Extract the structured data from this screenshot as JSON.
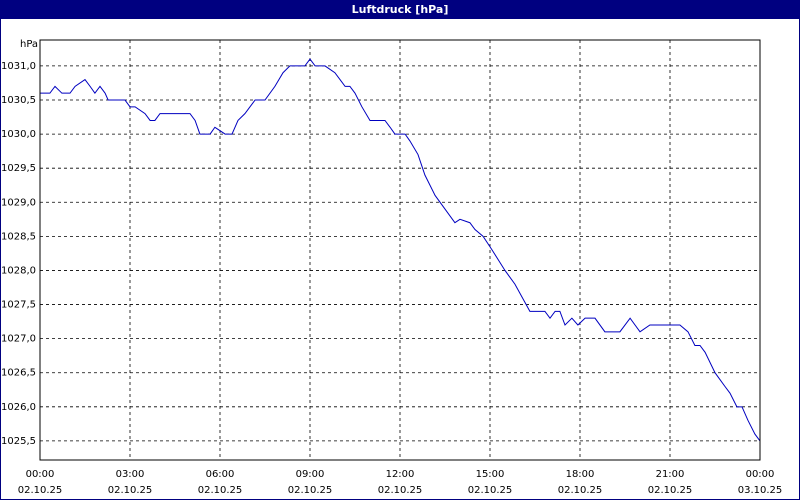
{
  "chart_data": {
    "type": "line",
    "title": "Luftdruck [hPa]",
    "y_label": "hPa",
    "x": [
      0,
      0.33,
      0.5,
      0.73,
      1.0,
      1.17,
      1.5,
      1.67,
      1.83,
      2.0,
      2.17,
      2.27,
      2.83,
      3.0,
      3.17,
      3.5,
      3.67,
      3.83,
      4.0,
      5.0,
      5.17,
      5.33,
      5.67,
      5.83,
      6.17,
      6.4,
      6.6,
      6.83,
      7.0,
      7.17,
      7.5,
      7.83,
      8.1,
      8.33,
      8.83,
      9.0,
      9.17,
      9.5,
      9.83,
      10.0,
      10.17,
      10.33,
      10.5,
      10.73,
      11.0,
      11.5,
      11.67,
      11.83,
      12.17,
      12.33,
      12.6,
      12.83,
      13.17,
      13.5,
      13.83,
      14.0,
      14.33,
      14.5,
      14.77,
      15.07,
      15.5,
      15.83,
      16.33,
      16.83,
      17.0,
      17.17,
      17.33,
      17.5,
      17.73,
      17.93,
      18.17,
      18.5,
      18.83,
      19.33,
      19.67,
      20.0,
      20.33,
      21.33,
      21.6,
      21.83,
      22.0,
      22.17,
      22.5,
      22.83,
      23.0,
      23.23,
      23.4,
      23.6,
      23.83,
      24
    ],
    "series": [
      {
        "name": "Luftdruck",
        "color": "#0000c0",
        "values": [
          1030.6,
          1030.6,
          1030.7,
          1030.6,
          1030.6,
          1030.7,
          1030.8,
          1030.7,
          1030.6,
          1030.7,
          1030.6,
          1030.5,
          1030.5,
          1030.4,
          1030.4,
          1030.3,
          1030.2,
          1030.2,
          1030.3,
          1030.3,
          1030.2,
          1030.0,
          1030.0,
          1030.1,
          1030.0,
          1030.0,
          1030.2,
          1030.3,
          1030.4,
          1030.5,
          1030.5,
          1030.7,
          1030.9,
          1031.0,
          1031.0,
          1031.1,
          1031.0,
          1031.0,
          1030.9,
          1030.8,
          1030.7,
          1030.7,
          1030.6,
          1030.4,
          1030.2,
          1030.2,
          1030.1,
          1030.0,
          1030.0,
          1029.9,
          1029.7,
          1029.4,
          1029.1,
          1028.9,
          1028.7,
          1028.75,
          1028.7,
          1028.6,
          1028.5,
          1028.3,
          1028.0,
          1027.8,
          1027.4,
          1027.4,
          1027.3,
          1027.4,
          1027.4,
          1027.2,
          1027.3,
          1027.2,
          1027.3,
          1027.3,
          1027.1,
          1027.1,
          1027.3,
          1027.1,
          1027.2,
          1027.2,
          1027.1,
          1026.9,
          1026.9,
          1026.8,
          1026.5,
          1026.3,
          1026.2,
          1026.0,
          1026.0,
          1025.8,
          1025.6,
          1025.5
        ]
      }
    ],
    "xlim": [
      0,
      24
    ],
    "ylim": [
      1025.22,
      1031.38
    ],
    "xticks": [
      {
        "value": 0,
        "label": [
          "00:00",
          "02.10.25"
        ]
      },
      {
        "value": 3,
        "label": [
          "03:00",
          "02.10.25"
        ]
      },
      {
        "value": 6,
        "label": [
          "06:00",
          "02.10.25"
        ]
      },
      {
        "value": 9,
        "label": [
          "09:00",
          "02.10.25"
        ]
      },
      {
        "value": 12,
        "label": [
          "12:00",
          "02.10.25"
        ]
      },
      {
        "value": 15,
        "label": [
          "15:00",
          "02.10.25"
        ]
      },
      {
        "value": 18,
        "label": [
          "18:00",
          "02.10.25"
        ]
      },
      {
        "value": 21,
        "label": [
          "21:00",
          "02.10.25"
        ]
      },
      {
        "value": 24,
        "label": [
          "00:00",
          "03.10.25"
        ]
      }
    ],
    "yticks": [
      {
        "value": 1025.5,
        "label": "1025,5"
      },
      {
        "value": 1026.0,
        "label": "1026,0"
      },
      {
        "value": 1026.5,
        "label": "1026,5"
      },
      {
        "value": 1027.0,
        "label": "1027,0"
      },
      {
        "value": 1027.5,
        "label": "1027,5"
      },
      {
        "value": 1028.0,
        "label": "1028,0"
      },
      {
        "value": 1028.5,
        "label": "1028,5"
      },
      {
        "value": 1029.0,
        "label": "1029,0"
      },
      {
        "value": 1029.5,
        "label": "1029,5"
      },
      {
        "value": 1030.0,
        "label": "1030,0"
      },
      {
        "value": 1030.5,
        "label": "1030,5"
      },
      {
        "value": 1031.0,
        "label": "1031,0"
      }
    ],
    "grid": true
  }
}
